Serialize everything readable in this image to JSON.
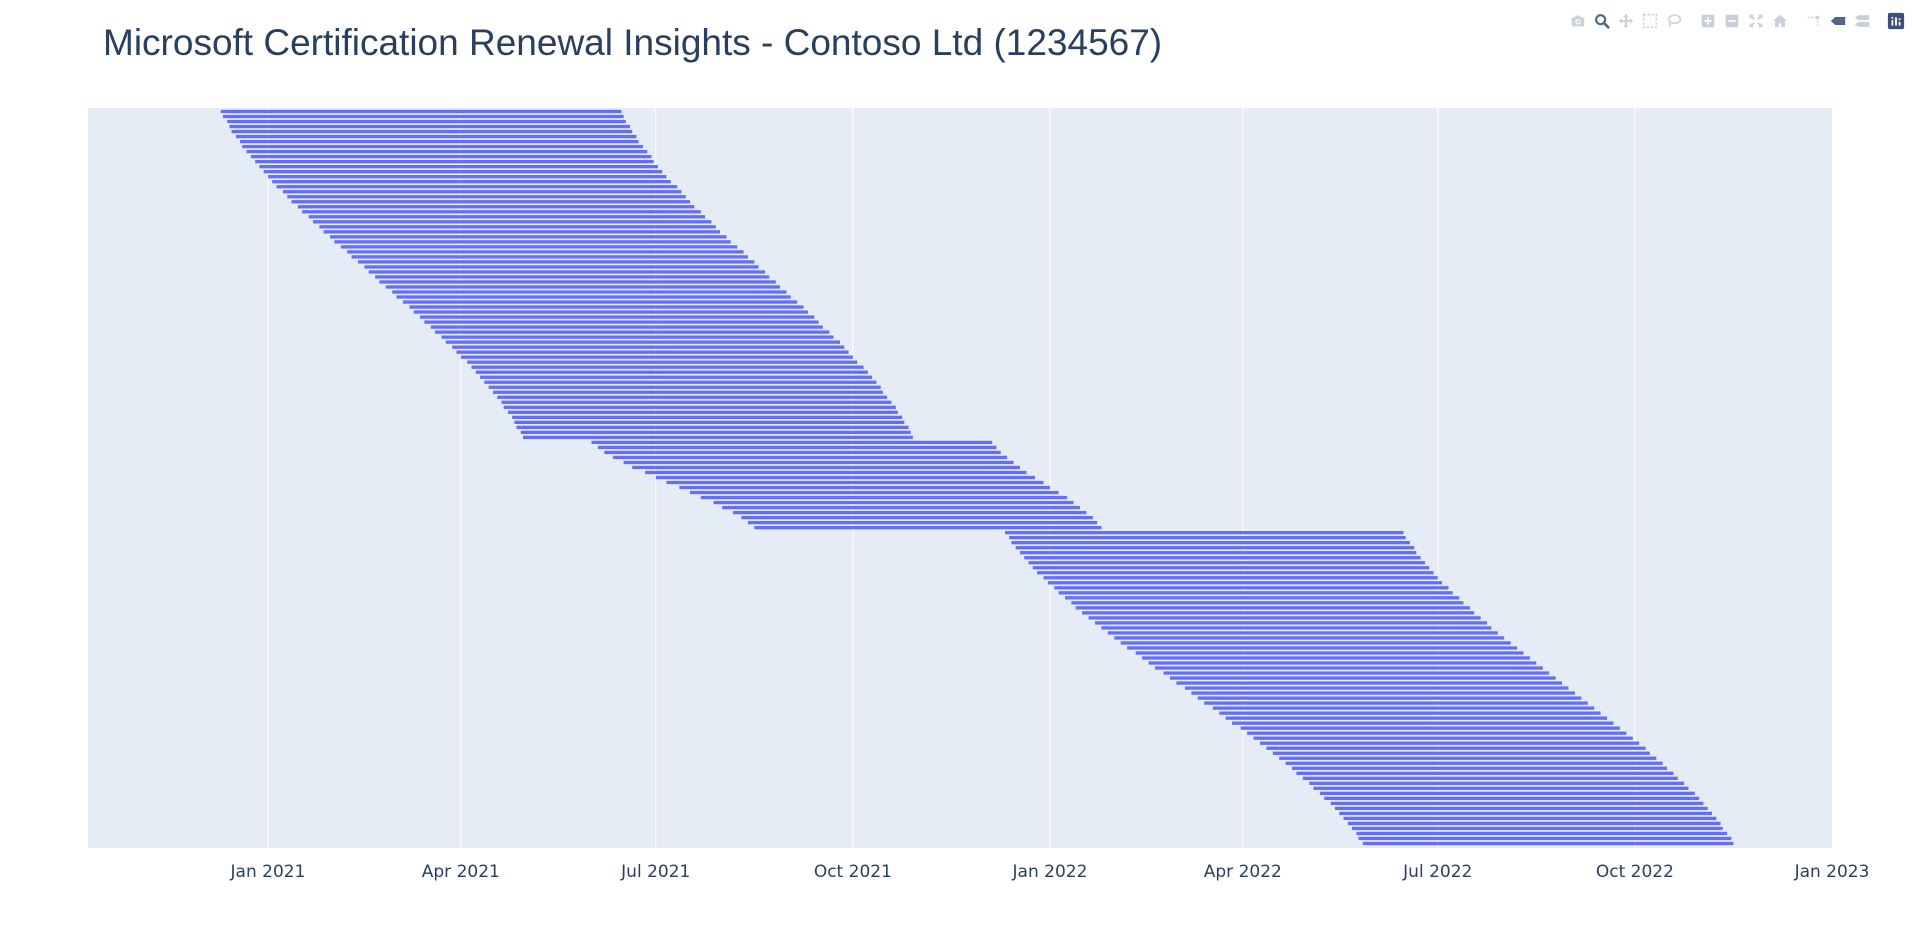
{
  "title": "Microsoft Certification Renewal Insights - Contoso Ltd (1234567)",
  "modebar": {
    "buttons": [
      {
        "name": "download-plot-button",
        "icon": "camera-icon",
        "group": 0
      },
      {
        "name": "zoom-button",
        "icon": "magnifier-icon",
        "group": 0,
        "active": true
      },
      {
        "name": "pan-button",
        "icon": "move-icon",
        "group": 0
      },
      {
        "name": "box-select-button",
        "icon": "dashed-box-icon",
        "group": 0
      },
      {
        "name": "lasso-select-button",
        "icon": "lasso-icon",
        "group": 0
      },
      {
        "name": "zoom-in-button",
        "icon": "plus-box-icon",
        "group": 1
      },
      {
        "name": "zoom-out-button",
        "icon": "minus-box-icon",
        "group": 1
      },
      {
        "name": "autoscale-button",
        "icon": "autoscale-icon",
        "group": 1
      },
      {
        "name": "reset-axes-button",
        "icon": "home-icon",
        "group": 1
      },
      {
        "name": "toggle-spikelines-button",
        "icon": "spikeline-icon",
        "group": 2
      },
      {
        "name": "hover-closest-button",
        "icon": "tag-icon",
        "group": 2,
        "active": true
      },
      {
        "name": "hover-compare-button",
        "icon": "double-tag-icon",
        "group": 2
      },
      {
        "name": "plotly-logo-button",
        "icon": "plotly-logo-icon",
        "group": 3
      }
    ]
  },
  "colors": {
    "bar": "#636efa",
    "plot_bg": "#e5ecf6",
    "grid": "#ffffff",
    "text": "#2a3f5f",
    "modebar_icon": "#c9d0da",
    "modebar_active": "#506784",
    "logo_bg": "#3f4f75"
  },
  "chart_data": {
    "type": "timeline",
    "orientation": "horizontal",
    "x_type": "date",
    "x_range": [
      "2020-10-09",
      "2023-01-01"
    ],
    "x_ticks": [
      {
        "value": "2021-01-01",
        "label": "Jan 2021"
      },
      {
        "value": "2021-04-01",
        "label": "Apr 2021"
      },
      {
        "value": "2021-07-01",
        "label": "Jul 2021"
      },
      {
        "value": "2021-10-01",
        "label": "Oct 2021"
      },
      {
        "value": "2022-01-01",
        "label": "Jan 2022"
      },
      {
        "value": "2022-04-01",
        "label": "Apr 2022"
      },
      {
        "value": "2022-07-01",
        "label": "Jul 2022"
      },
      {
        "value": "2022-10-01",
        "label": "Oct 2022"
      },
      {
        "value": "2023-01-01",
        "label": "Jan 2023"
      }
    ],
    "y_labels_shown": false,
    "grid": true,
    "segments": [
      {
        "period": 1,
        "count": 66,
        "start_from": "2020-12-10",
        "start_to": "2021-04-30",
        "end_from": "2021-06-15",
        "end_to": "2021-10-29"
      },
      {
        "period": 2,
        "count": 18,
        "start_from": "2021-06-01",
        "start_to": "2021-08-16",
        "end_from": "2021-12-05",
        "end_to": "2022-01-25"
      },
      {
        "period": 3,
        "count": 63,
        "start_from": "2021-12-11",
        "start_to": "2022-05-27",
        "end_from": "2022-06-15",
        "end_to": "2022-11-16"
      }
    ]
  }
}
